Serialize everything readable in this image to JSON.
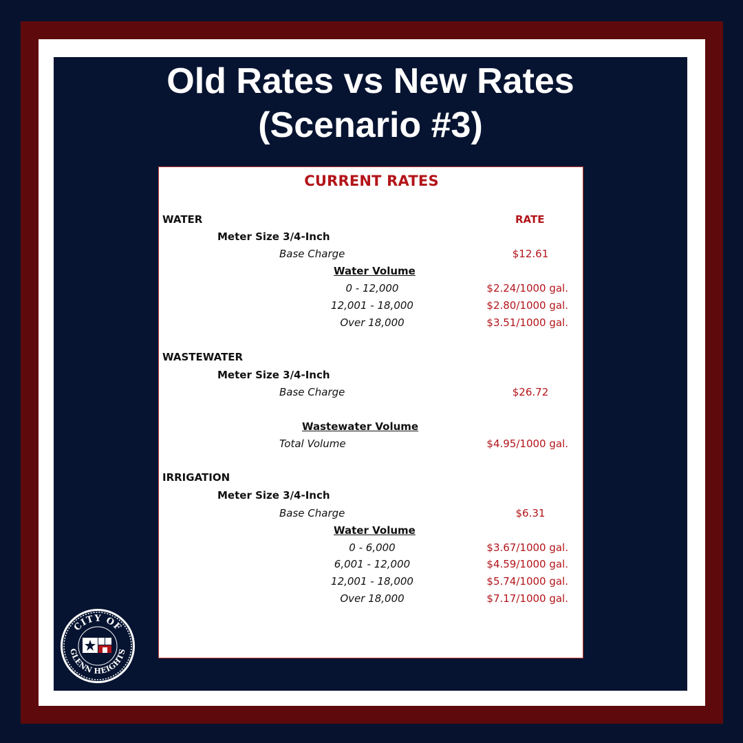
{
  "title": {
    "line1": "Old Rates vs New Rates",
    "line2": "(Scenario #3)"
  },
  "sheet": {
    "heading": "CURRENT RATES",
    "rate_header": "RATE",
    "water": {
      "label": "WATER",
      "meter": "Meter Size 3/4-Inch",
      "base_label": "Base Charge",
      "base_rate": "$12.61",
      "volume_header": "Water Volume",
      "tiers": [
        {
          "range": "0 -  12,000",
          "rate": "$2.24/1000 gal."
        },
        {
          "range": "12,001 - 18,000",
          "rate": "$2.80/1000 gal."
        },
        {
          "range": "Over 18,000",
          "rate": "$3.51/1000 gal."
        }
      ]
    },
    "wastewater": {
      "label": "WASTEWATER",
      "meter": "Meter Size 3/4-Inch",
      "base_label": "Base Charge",
      "base_rate": "$26.72",
      "volume_header": "Wastewater Volume",
      "total_label": "Total Volume",
      "total_rate": "$4.95/1000 gal."
    },
    "irrigation": {
      "label": "IRRIGATION",
      "meter": "Meter Size 3/4-Inch",
      "base_label": "Base Charge",
      "base_rate": "$6.31",
      "volume_header": "Water Volume",
      "tiers": [
        {
          "range": "0 -  6,000",
          "rate": "$3.67/1000 gal."
        },
        {
          "range": "6,001 - 12,000",
          "rate": "$4.59/1000 gal."
        },
        {
          "range": "12,001 - 18,000",
          "rate": "$5.74/1000 gal."
        },
        {
          "range": "Over 18,000",
          "rate": "$7.17/1000 gal."
        }
      ]
    }
  },
  "seal": {
    "text": "CITY OF GLENN HEIGHTS"
  },
  "colors": {
    "navy": "#071431",
    "maroon": "#5e0a0c",
    "rate_red": "#b3141a"
  }
}
